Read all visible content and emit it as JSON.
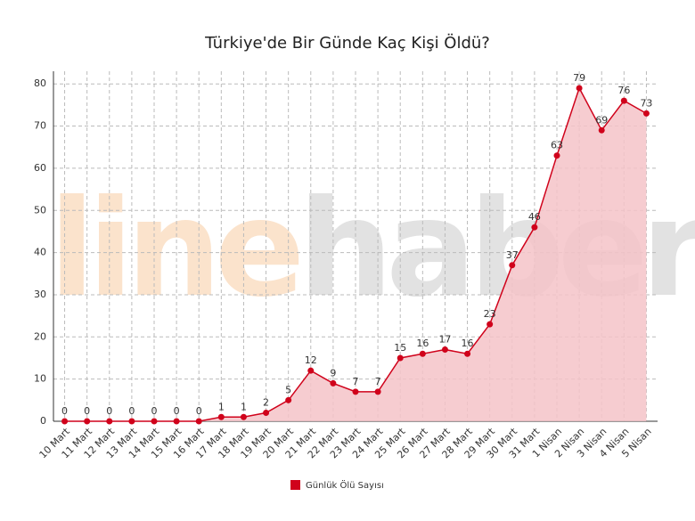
{
  "chart_data": {
    "type": "area",
    "title": "Türkiye'de Bir Günde Kaç Kişi Öldü?",
    "watermark": [
      "line",
      "haber"
    ],
    "categories": [
      "10 Mart",
      "11 Mart",
      "12 Mart",
      "13 Mart",
      "14 Mart",
      "15 Mart",
      "16 Mart",
      "17 Mart",
      "18 Mart",
      "19 Mart",
      "20 Mart",
      "21 Mart",
      "22 Mart",
      "23 Mart",
      "24 Mart",
      "25 Mart",
      "26 Mart",
      "27 Mart",
      "28 Mart",
      "29 Mart",
      "30 Mart",
      "31 Mart",
      "1 Nisan",
      "2 Nisan",
      "3 Nisan",
      "4 Nisan",
      "5 Nisan"
    ],
    "series": [
      {
        "name": "Günlük Ölü Sayısı",
        "color": "#d0021b",
        "fill": "#f5c3c8",
        "values": [
          0,
          0,
          0,
          0,
          0,
          0,
          0,
          1,
          1,
          2,
          5,
          12,
          9,
          7,
          7,
          15,
          16,
          17,
          16,
          23,
          37,
          46,
          63,
          79,
          69,
          76,
          73
        ]
      }
    ],
    "ylim": [
      0,
      83
    ],
    "yticks": [
      0,
      10,
      20,
      30,
      40,
      50,
      60,
      70,
      80
    ],
    "grid": true,
    "legend": "bottom"
  }
}
